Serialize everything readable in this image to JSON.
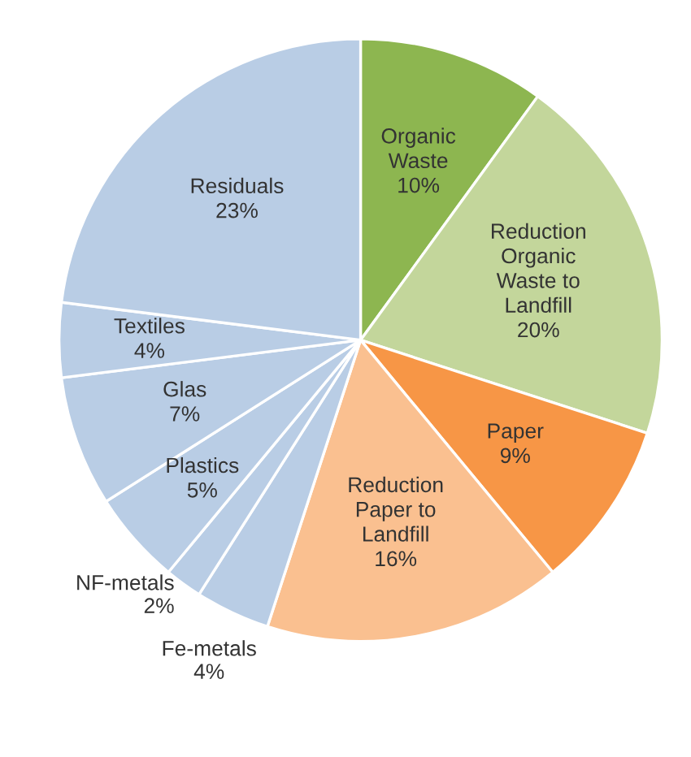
{
  "chart_data": {
    "type": "pie",
    "categories": [
      "Organic Waste",
      "Reduction Organic Waste to Landfill",
      "Paper",
      "Reduction Paper to Landfill",
      "Fe-metals",
      "NF-metals",
      "Plastics",
      "Glas",
      "Textiles",
      "Residuals"
    ],
    "values": [
      10,
      20,
      9,
      16,
      4,
      2,
      5,
      7,
      4,
      23
    ],
    "value_labels": [
      "10%",
      "20%",
      "9%",
      "16%",
      "4%",
      "2%",
      "5%",
      "7%",
      "4%",
      "23%"
    ],
    "colors": [
      "#8db650",
      "#c3d69b",
      "#f79646",
      "#fac090",
      "#b9cde5",
      "#b9cde5",
      "#b9cde5",
      "#b9cde5",
      "#b9cde5",
      "#b9cde5"
    ]
  }
}
